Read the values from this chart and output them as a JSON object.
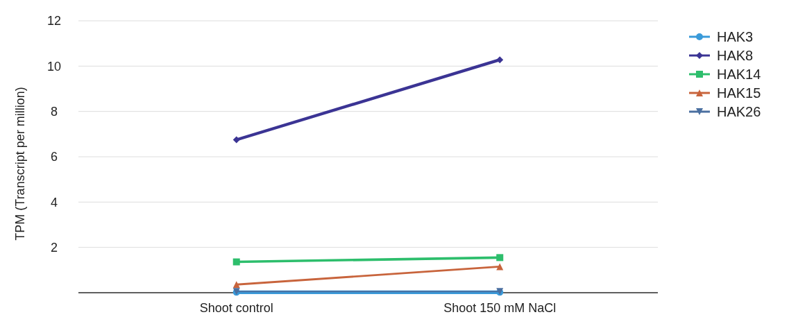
{
  "chart_data": {
    "type": "line",
    "ylabel": "TPM (Transcript per million)",
    "categories": [
      "Shoot control",
      "Shoot 150 mM NaCl"
    ],
    "ylim": [
      0,
      12
    ],
    "yticks": [
      {
        "value": 0,
        "label": null
      },
      2,
      4,
      6,
      8,
      10,
      12
    ],
    "grid": "y",
    "legend": "top right",
    "series": [
      {
        "name": "HAK3",
        "color": "#3a9ad9",
        "marker": "circle",
        "values": [
          0.02,
          0.02
        ]
      },
      {
        "name": "HAK8",
        "color": "#3b3494",
        "marker": "diamond",
        "values": [
          6.75,
          10.28
        ]
      },
      {
        "name": "HAK14",
        "color": "#2dbe6c",
        "marker": "square",
        "values": [
          1.36,
          1.55
        ]
      },
      {
        "name": "HAK15",
        "color": "#c8643c",
        "marker": "triangle",
        "values": [
          0.36,
          1.15
        ]
      },
      {
        "name": "HAK26",
        "color": "#4a6fa0",
        "marker": "triangle-down",
        "values": [
          0.05,
          0.05
        ]
      }
    ]
  }
}
